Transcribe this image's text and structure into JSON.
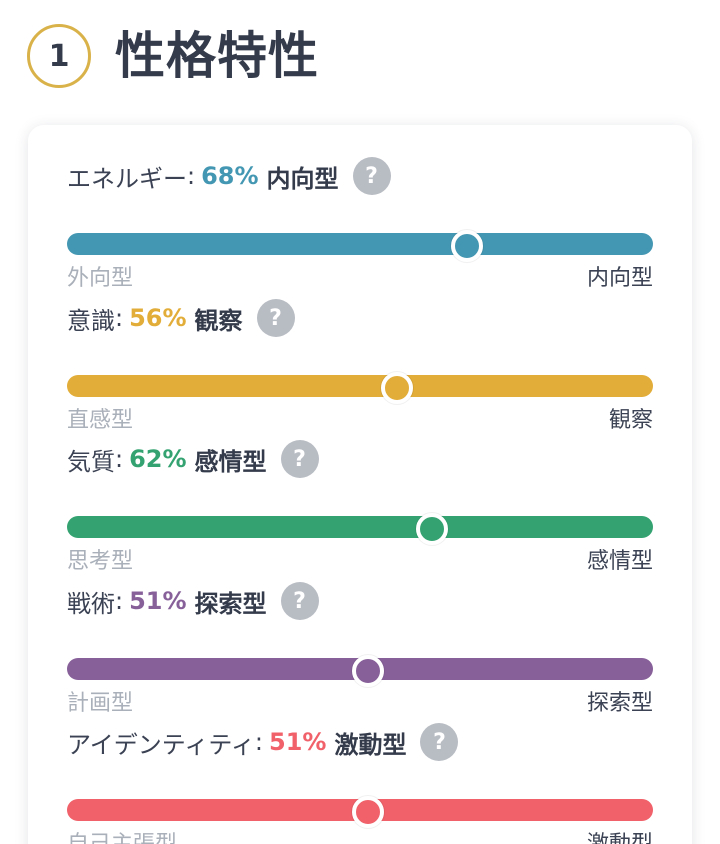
{
  "header": {
    "step_number": "1",
    "title": "性格特性"
  },
  "help_symbol": "?",
  "traits": [
    {
      "name": "エネルギー",
      "colon": ":",
      "percent": "68%",
      "result": "内向型",
      "value": 0.68,
      "color": "#4497b2",
      "left_label": "外向型",
      "right_label": "内向型"
    },
    {
      "name": "意識",
      "colon": ":",
      "percent": "56%",
      "result": "観察",
      "value": 0.56,
      "color": "#e2ad39",
      "left_label": "直感型",
      "right_label": "観察"
    },
    {
      "name": "気質",
      "colon": ":",
      "percent": "62%",
      "result": "感情型",
      "value": 0.62,
      "color": "#34a371",
      "left_label": "思考型",
      "right_label": "感情型"
    },
    {
      "name": "戦術",
      "colon": ":",
      "percent": "51%",
      "result": "探索型",
      "value": 0.51,
      "color": "#87609a",
      "left_label": "計画型",
      "right_label": "探索型"
    },
    {
      "name": "アイデンティティ",
      "colon": ":",
      "percent": "51%",
      "result": "激動型",
      "value": 0.51,
      "color": "#f0616a",
      "left_label": "自己主張型",
      "right_label": "激動型"
    }
  ]
}
